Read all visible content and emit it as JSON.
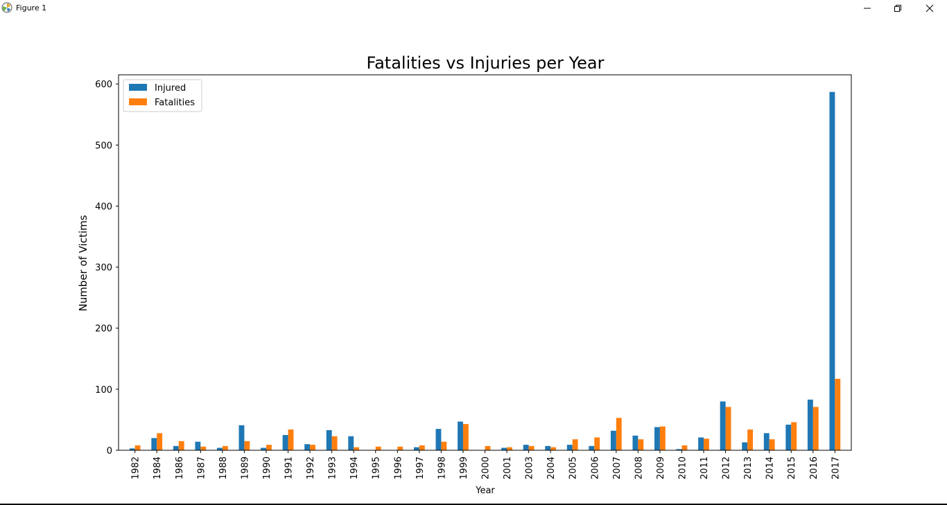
{
  "window": {
    "title": "Figure 1",
    "icons": {
      "app": "matplotlib-icon",
      "minimize": "minimize-icon",
      "maximize": "maximize-icon",
      "close": "close-icon"
    }
  },
  "chart_data": {
    "type": "bar",
    "title": "Fatalities vs Injuries per Year",
    "xlabel": "Year",
    "ylabel": "Number of Victims",
    "ylim": [
      0,
      615
    ],
    "yticks": [
      0,
      100,
      200,
      300,
      400,
      500,
      600
    ],
    "grid": false,
    "legend_position": "top-left",
    "categories": [
      "1982",
      "1984",
      "1986",
      "1987",
      "1988",
      "1989",
      "1990",
      "1991",
      "1992",
      "1993",
      "1994",
      "1995",
      "1996",
      "1997",
      "1998",
      "1999",
      "2000",
      "2001",
      "2003",
      "2004",
      "2005",
      "2006",
      "2007",
      "2008",
      "2009",
      "2010",
      "2011",
      "2012",
      "2013",
      "2014",
      "2015",
      "2016",
      "2017"
    ],
    "series": [
      {
        "name": "Injured",
        "color": "#1f77b4",
        "values": [
          3,
          20,
          7,
          14,
          4,
          41,
          4,
          25,
          10,
          33,
          23,
          0,
          0,
          5,
          35,
          47,
          0,
          4,
          9,
          7,
          9,
          7,
          32,
          24,
          38,
          2,
          21,
          80,
          13,
          28,
          42,
          83,
          587
        ]
      },
      {
        "name": "Fatalities",
        "color": "#ff7f0e",
        "values": [
          8,
          28,
          15,
          6,
          7,
          15,
          9,
          34,
          9,
          23,
          5,
          6,
          6,
          8,
          14,
          43,
          7,
          5,
          7,
          5,
          18,
          21,
          53,
          18,
          39,
          8,
          19,
          71,
          34,
          18,
          46,
          71,
          117
        ]
      }
    ]
  }
}
